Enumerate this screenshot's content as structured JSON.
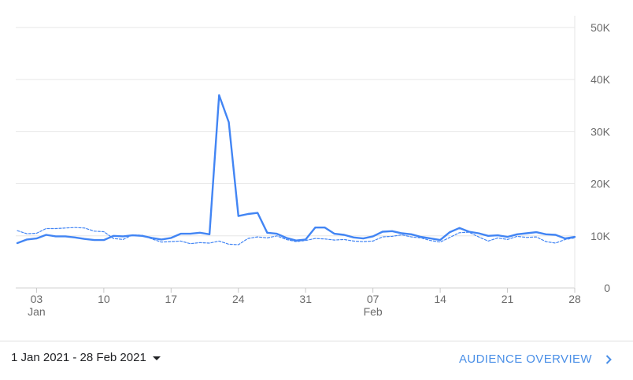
{
  "chart_data": {
    "type": "line",
    "x_label": "",
    "y_label": "",
    "ylim": [
      0,
      50000
    ],
    "y_ticks": [
      {
        "value": 0,
        "label": "0"
      },
      {
        "value": 10000,
        "label": "10K"
      },
      {
        "value": 20000,
        "label": "20K"
      },
      {
        "value": 30000,
        "label": "30K"
      },
      {
        "value": 40000,
        "label": "40K"
      },
      {
        "value": 50000,
        "label": "50K"
      }
    ],
    "x_ticks": [
      {
        "date": "2021-01-03",
        "label": "03",
        "sublabel": "Jan"
      },
      {
        "date": "2021-01-10",
        "label": "10",
        "sublabel": ""
      },
      {
        "date": "2021-01-17",
        "label": "17",
        "sublabel": ""
      },
      {
        "date": "2021-01-24",
        "label": "24",
        "sublabel": ""
      },
      {
        "date": "2021-01-31",
        "label": "31",
        "sublabel": ""
      },
      {
        "date": "2021-02-07",
        "label": "07",
        "sublabel": "Feb"
      },
      {
        "date": "2021-02-14",
        "label": "14",
        "sublabel": ""
      },
      {
        "date": "2021-02-21",
        "label": "21",
        "sublabel": ""
      },
      {
        "date": "2021-02-28",
        "label": "28",
        "sublabel": ""
      }
    ],
    "x_start": "2021-01-01",
    "x_end": "2021-02-28",
    "grid": true,
    "series": [
      {
        "style": "solid",
        "color": "#4285f4",
        "values": [
          {
            "x": "2021-01-01",
            "y": 8600
          },
          {
            "x": "2021-01-02",
            "y": 9300
          },
          {
            "x": "2021-01-03",
            "y": 9500
          },
          {
            "x": "2021-01-04",
            "y": 10200
          },
          {
            "x": "2021-01-05",
            "y": 9900
          },
          {
            "x": "2021-01-06",
            "y": 9900
          },
          {
            "x": "2021-01-07",
            "y": 9700
          },
          {
            "x": "2021-01-08",
            "y": 9400
          },
          {
            "x": "2021-01-09",
            "y": 9200
          },
          {
            "x": "2021-01-10",
            "y": 9200
          },
          {
            "x": "2021-01-11",
            "y": 10000
          },
          {
            "x": "2021-01-12",
            "y": 9900
          },
          {
            "x": "2021-01-13",
            "y": 10100
          },
          {
            "x": "2021-01-14",
            "y": 10000
          },
          {
            "x": "2021-01-15",
            "y": 9600
          },
          {
            "x": "2021-01-16",
            "y": 9300
          },
          {
            "x": "2021-01-17",
            "y": 9600
          },
          {
            "x": "2021-01-18",
            "y": 10400
          },
          {
            "x": "2021-01-19",
            "y": 10400
          },
          {
            "x": "2021-01-20",
            "y": 10600
          },
          {
            "x": "2021-01-21",
            "y": 10300
          },
          {
            "x": "2021-01-22",
            "y": 37000
          },
          {
            "x": "2021-01-23",
            "y": 31800
          },
          {
            "x": "2021-01-24",
            "y": 13800
          },
          {
            "x": "2021-01-25",
            "y": 14200
          },
          {
            "x": "2021-01-26",
            "y": 14400
          },
          {
            "x": "2021-01-27",
            "y": 10600
          },
          {
            "x": "2021-01-28",
            "y": 10400
          },
          {
            "x": "2021-01-29",
            "y": 9600
          },
          {
            "x": "2021-01-30",
            "y": 9100
          },
          {
            "x": "2021-01-31",
            "y": 9300
          },
          {
            "x": "2021-02-01",
            "y": 11600
          },
          {
            "x": "2021-02-02",
            "y": 11600
          },
          {
            "x": "2021-02-03",
            "y": 10400
          },
          {
            "x": "2021-02-04",
            "y": 10200
          },
          {
            "x": "2021-02-05",
            "y": 9700
          },
          {
            "x": "2021-02-06",
            "y": 9500
          },
          {
            "x": "2021-02-07",
            "y": 9900
          },
          {
            "x": "2021-02-08",
            "y": 10800
          },
          {
            "x": "2021-02-09",
            "y": 10900
          },
          {
            "x": "2021-02-10",
            "y": 10500
          },
          {
            "x": "2021-02-11",
            "y": 10300
          },
          {
            "x": "2021-02-12",
            "y": 9800
          },
          {
            "x": "2021-02-13",
            "y": 9500
          },
          {
            "x": "2021-02-14",
            "y": 9200
          },
          {
            "x": "2021-02-15",
            "y": 10700
          },
          {
            "x": "2021-02-16",
            "y": 11500
          },
          {
            "x": "2021-02-17",
            "y": 10800
          },
          {
            "x": "2021-02-18",
            "y": 10500
          },
          {
            "x": "2021-02-19",
            "y": 10000
          },
          {
            "x": "2021-02-20",
            "y": 10100
          },
          {
            "x": "2021-02-21",
            "y": 9800
          },
          {
            "x": "2021-02-22",
            "y": 10300
          },
          {
            "x": "2021-02-23",
            "y": 10500
          },
          {
            "x": "2021-02-24",
            "y": 10700
          },
          {
            "x": "2021-02-25",
            "y": 10300
          },
          {
            "x": "2021-02-26",
            "y": 10200
          },
          {
            "x": "2021-02-27",
            "y": 9500
          },
          {
            "x": "2021-02-28",
            "y": 9800
          }
        ]
      },
      {
        "style": "dashed",
        "color": "#4285f4",
        "values": [
          {
            "x": "2021-01-01",
            "y": 11000
          },
          {
            "x": "2021-01-02",
            "y": 10400
          },
          {
            "x": "2021-01-03",
            "y": 10500
          },
          {
            "x": "2021-01-04",
            "y": 11400
          },
          {
            "x": "2021-01-05",
            "y": 11400
          },
          {
            "x": "2021-01-06",
            "y": 11500
          },
          {
            "x": "2021-01-07",
            "y": 11600
          },
          {
            "x": "2021-01-08",
            "y": 11500
          },
          {
            "x": "2021-01-09",
            "y": 10900
          },
          {
            "x": "2021-01-10",
            "y": 10800
          },
          {
            "x": "2021-01-11",
            "y": 9500
          },
          {
            "x": "2021-01-12",
            "y": 9300
          },
          {
            "x": "2021-01-13",
            "y": 10200
          },
          {
            "x": "2021-01-14",
            "y": 10100
          },
          {
            "x": "2021-01-15",
            "y": 9400
          },
          {
            "x": "2021-01-16",
            "y": 8800
          },
          {
            "x": "2021-01-17",
            "y": 8900
          },
          {
            "x": "2021-01-18",
            "y": 9000
          },
          {
            "x": "2021-01-19",
            "y": 8500
          },
          {
            "x": "2021-01-20",
            "y": 8700
          },
          {
            "x": "2021-01-21",
            "y": 8600
          },
          {
            "x": "2021-01-22",
            "y": 9000
          },
          {
            "x": "2021-01-23",
            "y": 8400
          },
          {
            "x": "2021-01-24",
            "y": 8300
          },
          {
            "x": "2021-01-25",
            "y": 9500
          },
          {
            "x": "2021-01-26",
            "y": 9800
          },
          {
            "x": "2021-01-27",
            "y": 9600
          },
          {
            "x": "2021-01-28",
            "y": 10000
          },
          {
            "x": "2021-01-29",
            "y": 9300
          },
          {
            "x": "2021-01-30",
            "y": 8900
          },
          {
            "x": "2021-01-31",
            "y": 9100
          },
          {
            "x": "2021-02-01",
            "y": 9500
          },
          {
            "x": "2021-02-02",
            "y": 9400
          },
          {
            "x": "2021-02-03",
            "y": 9200
          },
          {
            "x": "2021-02-04",
            "y": 9300
          },
          {
            "x": "2021-02-05",
            "y": 9000
          },
          {
            "x": "2021-02-06",
            "y": 8900
          },
          {
            "x": "2021-02-07",
            "y": 9000
          },
          {
            "x": "2021-02-08",
            "y": 9800
          },
          {
            "x": "2021-02-09",
            "y": 9900
          },
          {
            "x": "2021-02-10",
            "y": 10200
          },
          {
            "x": "2021-02-11",
            "y": 9800
          },
          {
            "x": "2021-02-12",
            "y": 9600
          },
          {
            "x": "2021-02-13",
            "y": 9100
          },
          {
            "x": "2021-02-14",
            "y": 8800
          },
          {
            "x": "2021-02-15",
            "y": 9700
          },
          {
            "x": "2021-02-16",
            "y": 10600
          },
          {
            "x": "2021-02-17",
            "y": 10700
          },
          {
            "x": "2021-02-18",
            "y": 9800
          },
          {
            "x": "2021-02-19",
            "y": 9000
          },
          {
            "x": "2021-02-20",
            "y": 9600
          },
          {
            "x": "2021-02-21",
            "y": 9300
          },
          {
            "x": "2021-02-22",
            "y": 9900
          },
          {
            "x": "2021-02-23",
            "y": 9700
          },
          {
            "x": "2021-02-24",
            "y": 9800
          },
          {
            "x": "2021-02-25",
            "y": 8900
          },
          {
            "x": "2021-02-26",
            "y": 8600
          },
          {
            "x": "2021-02-27",
            "y": 9300
          },
          {
            "x": "2021-02-28",
            "y": 9600
          }
        ]
      }
    ]
  },
  "footer": {
    "date_range": "1 Jan 2021 - 28 Feb 2021",
    "report_link": "AUDIENCE OVERVIEW"
  },
  "colors": {
    "line": "#4285f4",
    "grid": "#e6e6e6",
    "axis_text": "#6b6b6b",
    "link": "#4a8fe7"
  }
}
